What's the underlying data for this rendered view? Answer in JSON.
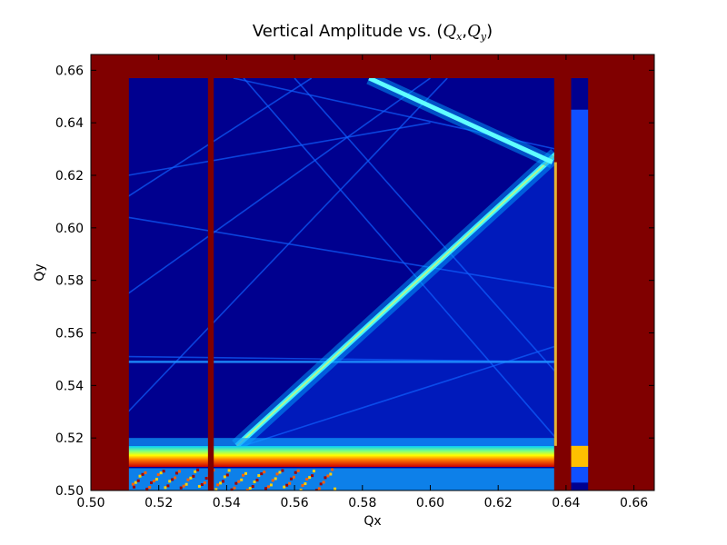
{
  "chart_data": {
    "type": "heatmap",
    "title": "Vertical Amplitude vs. (Q_x,Q_y)",
    "xlabel": "Qx",
    "ylabel": "Qy",
    "xlim": [
      0.5,
      0.666
    ],
    "ylim": [
      0.5,
      0.666
    ],
    "x_ticks": [
      "0.50",
      "0.52",
      "0.54",
      "0.56",
      "0.58",
      "0.60",
      "0.62",
      "0.64",
      "0.66"
    ],
    "x_tick_values": [
      0.5,
      0.52,
      0.54,
      0.56,
      0.58,
      0.6,
      0.62,
      0.64,
      0.66
    ],
    "y_ticks": [
      "0.50",
      "0.52",
      "0.54",
      "0.56",
      "0.58",
      "0.60",
      "0.62",
      "0.64",
      "0.66"
    ],
    "y_tick_values": [
      0.5,
      0.52,
      0.54,
      0.56,
      0.58,
      0.6,
      0.62,
      0.64,
      0.66
    ],
    "colormap": "jet",
    "colors": {
      "background_low": "#00008f",
      "saturated": "#800000",
      "mid_blue": "#0040ff",
      "cyan": "#00ffff",
      "yellow": "#ffff00",
      "red": "#ff0000"
    },
    "saturated_regions_qx": [
      [
        0.5,
        0.5095
      ],
      [
        0.5095,
        0.5112
      ],
      [
        0.5345,
        0.5362
      ],
      [
        0.6365,
        0.6415
      ],
      [
        0.6465,
        0.666
      ]
    ],
    "saturated_top_qy_above": 0.657,
    "bright_band_qy": [
      0.509,
      0.517
    ],
    "resonance_diagonal": {
      "from": [
        0.543,
        0.517
      ],
      "to": [
        0.637,
        0.628
      ]
    },
    "upper_diagonal": {
      "from": [
        0.582,
        0.657
      ],
      "to": [
        0.636,
        0.625
      ]
    },
    "horizontal_line_qy": 0.549
  }
}
